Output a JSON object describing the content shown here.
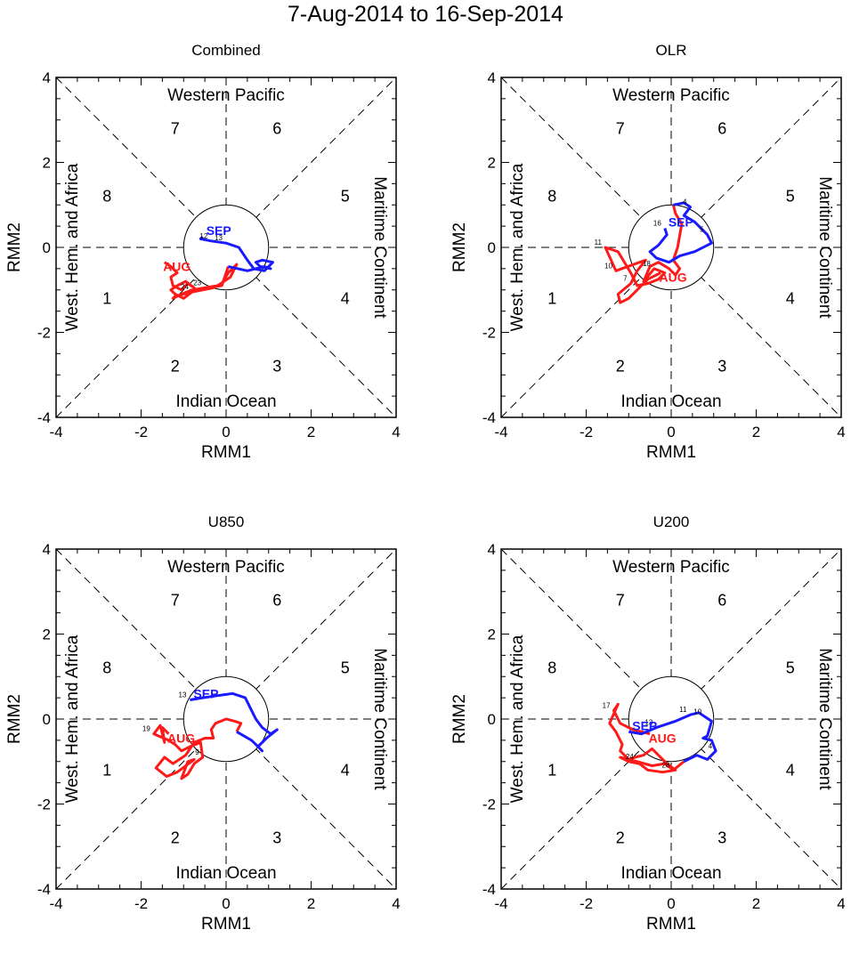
{
  "title": "7-Aug-2014 to 16-Sep-2014",
  "colors": {
    "aug": "#ff1a1a",
    "sep": "#1a1aff",
    "frame": "#000000"
  },
  "chart_data": [
    {
      "type": "line",
      "title": "Combined",
      "xlabel": "RMM1",
      "ylabel": "RMM2",
      "xlim": [
        -4,
        4
      ],
      "ylim": [
        -4,
        4
      ],
      "xticks": [
        "-4",
        "-2",
        "0",
        "2",
        "4"
      ],
      "yticks": [
        "-4",
        "-2",
        "0",
        "2",
        "4"
      ],
      "region_labels": {
        "top": "Western Pacific",
        "bottom": "Indian Ocean",
        "left": "West. Hem. and Africa",
        "right": "Maritime Continent"
      },
      "phases": [
        "1",
        "2",
        "3",
        "4",
        "5",
        "6",
        "7",
        "8"
      ],
      "series": [
        {
          "name": "AUG",
          "x": [
            -1.45,
            -1.3,
            -1.15,
            -1.3,
            -1.25,
            -1.05,
            -0.9,
            -0.75,
            -0.95,
            -1.15,
            -1.3,
            -1.2,
            -1.0,
            -0.8,
            -0.55,
            -0.3,
            -0.1,
            0.05,
            0.2,
            0.25,
            0.1,
            -0.2,
            -0.5,
            -0.8,
            -1.0,
            -1.2,
            -1.25,
            -1.05,
            -0.8,
            -0.5,
            -0.1,
            0.05
          ],
          "y": [
            -0.35,
            -0.45,
            -0.6,
            -0.7,
            -0.9,
            -1.0,
            -0.85,
            -0.95,
            -0.8,
            -0.9,
            -1.0,
            -1.1,
            -1.2,
            -1.05,
            -1.0,
            -0.95,
            -0.85,
            -0.6,
            -0.45,
            -0.4,
            -0.7,
            -0.9,
            -0.95,
            -1.05,
            -1.1,
            -1.15,
            -1.2,
            -1.1,
            -1.0,
            -0.95,
            -0.9,
            -0.45
          ],
          "labels": [
            "",
            "",
            "",
            "",
            "",
            "",
            "",
            "",
            "",
            "",
            "",
            "",
            "",
            "",
            "",
            "",
            "",
            "",
            "",
            "",
            "",
            "",
            "23",
            "24",
            "",
            "",
            "",
            "",
            "",
            "",
            "",
            ""
          ]
        },
        {
          "name": "SEP",
          "x": [
            0.05,
            0.5,
            0.9,
            1.05,
            0.8,
            0.7,
            0.85,
            1.1,
            0.9,
            0.65,
            0.5,
            0.3,
            0.0,
            -0.35,
            -0.6,
            -0.55
          ],
          "y": [
            -0.45,
            -0.55,
            -0.45,
            -0.5,
            -0.45,
            -0.35,
            -0.3,
            -0.35,
            -0.55,
            -0.5,
            -0.3,
            0.0,
            0.1,
            0.15,
            0.2,
            0.25
          ],
          "labels": [
            "",
            "",
            "",
            "",
            "",
            "",
            "",
            "",
            "",
            "",
            "",
            "",
            "13",
            "12",
            "",
            ""
          ]
        }
      ]
    },
    {
      "type": "line",
      "title": "OLR",
      "xlabel": "RMM1",
      "ylabel": "RMM2",
      "xlim": [
        -4,
        4
      ],
      "ylim": [
        -4,
        4
      ],
      "xticks": [
        "-4",
        "-2",
        "0",
        "2",
        "4"
      ],
      "yticks": [
        "-4",
        "-2",
        "0",
        "2",
        "4"
      ],
      "region_labels": {
        "top": "Western Pacific",
        "bottom": "Indian Ocean",
        "left": "West. Hem. and Africa",
        "right": "Maritime Continent"
      },
      "phases": [
        "1",
        "2",
        "3",
        "4",
        "5",
        "6",
        "7",
        "8"
      ],
      "series": [
        {
          "name": "AUG",
          "x": [
            -0.25,
            -0.55,
            -0.8,
            -1.0,
            -1.2,
            -1.25,
            -0.95,
            -0.8,
            -0.6,
            -1.3,
            -1.55,
            -1.25,
            -0.95,
            -0.8,
            -0.55,
            -0.3,
            -0.15,
            -0.4,
            -0.65,
            -0.5,
            -0.3,
            -0.05,
            0.1,
            0.2,
            0.05,
            0.15,
            0.25,
            0.1,
            0.05
          ],
          "y": [
            -0.6,
            -0.75,
            -1.0,
            -1.2,
            -1.3,
            -1.1,
            -0.85,
            -0.55,
            -0.3,
            -0.55,
            0.0,
            -0.1,
            -0.6,
            -0.9,
            -0.85,
            -0.75,
            -0.6,
            -0.5,
            -0.8,
            -0.45,
            -0.35,
            -0.5,
            -0.65,
            -0.5,
            -0.3,
            0.0,
            0.55,
            0.8,
            1.0
          ],
          "labels": [
            "",
            "",
            "",
            "",
            "",
            "",
            "7",
            "",
            "",
            "10",
            "11",
            "",
            "",
            "",
            "",
            "",
            "",
            "18",
            "",
            "",
            "",
            "",
            "",
            "",
            "",
            "",
            "",
            "",
            ""
          ]
        },
        {
          "name": "SEP",
          "x": [
            0.05,
            0.3,
            0.45,
            0.3,
            0.55,
            0.85,
            0.95,
            0.55,
            0.2,
            -0.05,
            -0.35,
            -0.5,
            -0.3,
            -0.1,
            -0.15
          ],
          "y": [
            1.0,
            1.05,
            0.95,
            0.75,
            0.6,
            0.3,
            0.1,
            -0.1,
            -0.2,
            -0.35,
            -0.25,
            -0.1,
            0.05,
            0.3,
            0.45
          ],
          "labels": [
            "",
            "",
            "4",
            "",
            "",
            "5",
            "",
            "",
            "",
            "",
            "",
            "",
            "",
            "",
            "16"
          ]
        }
      ]
    },
    {
      "type": "line",
      "title": "U850",
      "xlabel": "RMM1",
      "ylabel": "RMM2",
      "xlim": [
        -4,
        4
      ],
      "ylim": [
        -4,
        4
      ],
      "xticks": [
        "-4",
        "-2",
        "0",
        "2",
        "4"
      ],
      "yticks": [
        "-4",
        "-2",
        "0",
        "2",
        "4"
      ],
      "region_labels": {
        "top": "Western Pacific",
        "bottom": "Indian Ocean",
        "left": "West. Hem. and Africa",
        "right": "Maritime Continent"
      },
      "phases": [
        "1",
        "2",
        "3",
        "4",
        "5",
        "6",
        "7",
        "8"
      ],
      "series": [
        {
          "name": "AUG",
          "x": [
            -1.35,
            -1.5,
            -1.45,
            -1.55,
            -1.7,
            -1.35,
            -1.2,
            -1.05,
            -0.85,
            -0.6,
            -0.55,
            -0.75,
            -0.9,
            -1.05,
            -0.9,
            -0.75,
            -1.15,
            -1.4,
            -1.65,
            -1.45,
            -1.25,
            -0.95,
            -0.75,
            -0.5,
            -0.3,
            -0.35,
            -0.25,
            0.0,
            0.2,
            0.35,
            0.25
          ],
          "y": [
            -0.35,
            -0.2,
            -0.55,
            -0.15,
            -0.35,
            -0.5,
            -0.6,
            -0.75,
            -0.65,
            -0.55,
            -0.9,
            -1.05,
            -1.3,
            -1.4,
            -1.0,
            -0.95,
            -1.25,
            -1.35,
            -1.15,
            -0.9,
            -1.05,
            -0.85,
            -0.55,
            -0.45,
            -0.45,
            -0.25,
            -0.1,
            0.0,
            -0.05,
            -0.1,
            -0.3
          ],
          "labels": [
            "",
            "",
            "",
            "",
            "19",
            "",
            "",
            "",
            "",
            "",
            "9",
            "",
            "",
            "",
            "",
            "",
            "",
            "",
            "",
            "",
            "",
            "",
            "",
            "",
            "",
            "",
            "",
            "",
            "",
            "",
            ""
          ]
        },
        {
          "name": "SEP",
          "x": [
            0.25,
            0.6,
            0.7,
            0.85,
            0.75,
            0.95,
            1.2,
            1.05,
            0.85,
            0.7,
            0.45,
            0.15,
            -0.2,
            -0.55,
            -0.85
          ],
          "y": [
            -0.3,
            -0.5,
            -0.6,
            -0.75,
            -0.65,
            -0.45,
            -0.25,
            -0.35,
            -0.2,
            0.0,
            0.5,
            0.6,
            0.55,
            0.5,
            0.45
          ],
          "labels": [
            "",
            "",
            "",
            "",
            "",
            "",
            "",
            "",
            "",
            "",
            "",
            "",
            "",
            "",
            "13"
          ]
        }
      ]
    },
    {
      "type": "line",
      "title": "U200",
      "xlabel": "RMM1",
      "ylabel": "RMM2",
      "xlim": [
        -4,
        4
      ],
      "ylim": [
        -4,
        4
      ],
      "xticks": [
        "-4",
        "-2",
        "0",
        "2",
        "4"
      ],
      "yticks": [
        "-4",
        "-2",
        "0",
        "2",
        "4"
      ],
      "region_labels": {
        "top": "Western Pacific",
        "bottom": "Indian Ocean",
        "left": "West. Hem. and Africa",
        "right": "Maritime Continent"
      },
      "phases": [
        "1",
        "2",
        "3",
        "4",
        "5",
        "6",
        "7",
        "8"
      ],
      "series": [
        {
          "name": "AUG",
          "x": [
            -0.5,
            -0.7,
            -0.9,
            -1.2,
            -1.35,
            -1.25,
            -1.45,
            -1.3,
            -1.15,
            -1.2,
            -1.0,
            -0.85,
            -0.65,
            -0.45,
            -0.25,
            -0.1,
            0.1,
            -0.2,
            -0.55,
            -0.75,
            -1.0,
            -1.2,
            -0.8,
            -0.45,
            -0.15,
            0.05,
            0.3
          ],
          "y": [
            -0.35,
            -0.3,
            -0.25,
            -0.1,
            0.2,
            0.35,
            -0.1,
            -0.3,
            -0.6,
            -0.75,
            -0.95,
            -0.9,
            -0.85,
            -0.7,
            -0.9,
            -1.05,
            -1.2,
            -1.25,
            -1.2,
            -1.05,
            -1.0,
            -0.9,
            -1.0,
            -1.1,
            -1.05,
            -1.2,
            -1.0
          ],
          "labels": [
            "",
            "",
            "",
            "",
            "17",
            "",
            "",
            "",
            "",
            "",
            "",
            "",
            "",
            "",
            "",
            "",
            "",
            "",
            "",
            "",
            "",
            "",
            "24",
            "",
            "",
            "28",
            ""
          ]
        },
        {
          "name": "SEP",
          "x": [
            0.3,
            0.6,
            0.85,
            1.05,
            0.95,
            0.75,
            0.85,
            0.95,
            0.8,
            0.65,
            0.45,
            0.1,
            -0.35,
            -0.7,
            -1.0
          ],
          "y": [
            -1.0,
            -0.85,
            -0.95,
            -0.75,
            -0.5,
            -0.45,
            -0.4,
            -0.05,
            0.05,
            0.15,
            0.1,
            -0.05,
            -0.2,
            -0.35,
            -0.3
          ],
          "labels": [
            "",
            "",
            "",
            "4",
            "",
            "",
            "",
            "",
            "10",
            "",
            "11",
            "",
            "13",
            "",
            ""
          ]
        }
      ]
    }
  ]
}
